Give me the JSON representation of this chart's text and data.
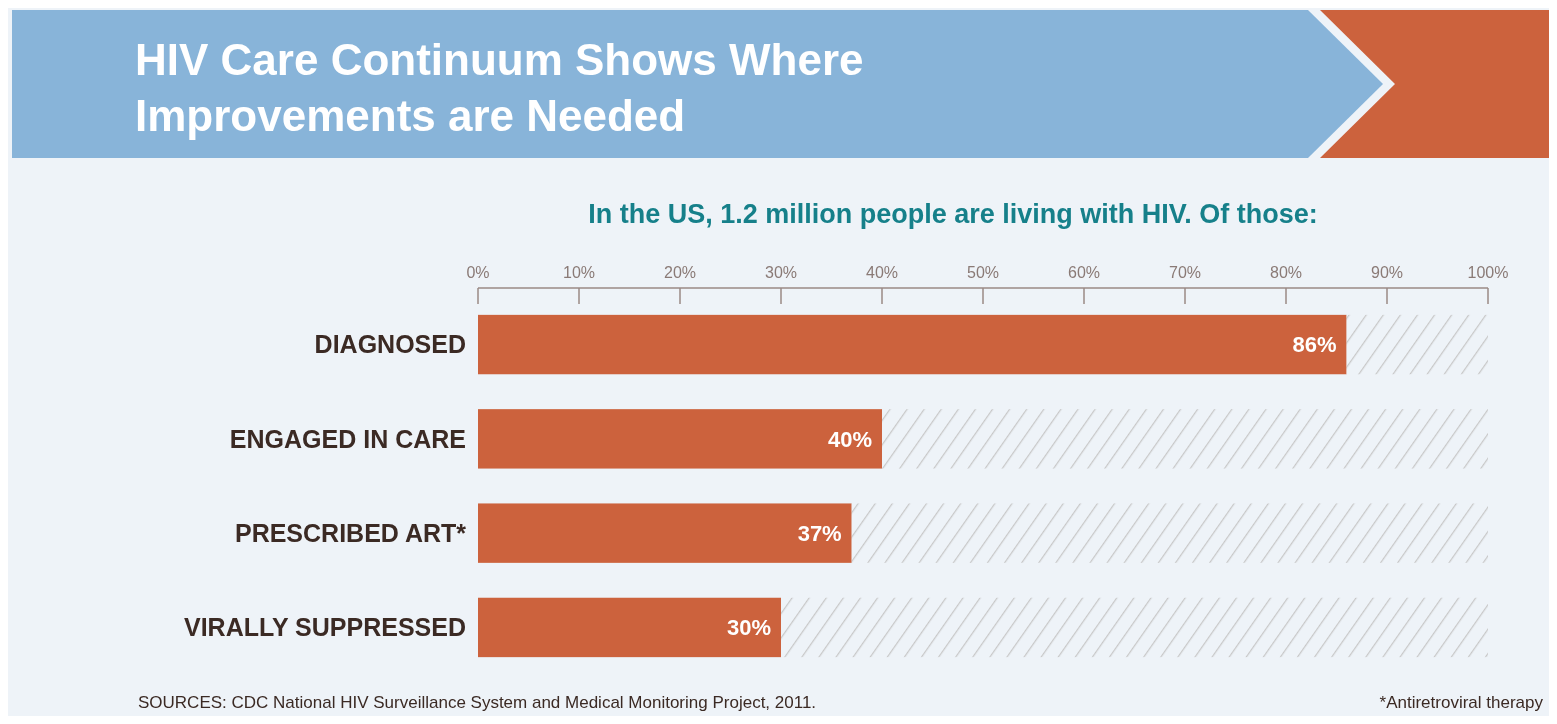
{
  "chart_data": {
    "type": "bar",
    "orientation": "horizontal",
    "stacked": true,
    "title": "HIV Care Continuum Shows Where Improvements are Needed",
    "subtitle": "In the US, 1.2 million people are living with HIV.  Of those:",
    "categories": [
      "DIAGNOSED",
      "ENGAGED IN CARE",
      "PRESCRIBED ART*",
      "VIRALLY SUPPRESSED"
    ],
    "series": [
      {
        "color": "#cc623d",
        "values": [
          86,
          40,
          37,
          30
        ],
        "value_labels": [
          "86%",
          "40%",
          "37%",
          "30%"
        ]
      },
      {
        "color": "#c8c8c8",
        "values": [
          14,
          60,
          63,
          70
        ]
      }
    ],
    "xlim": [
      0,
      100
    ],
    "xticks": [
      {
        "value": 0,
        "label": "0%"
      },
      {
        "value": 10,
        "label": "10%"
      },
      {
        "value": 20,
        "label": "20%"
      },
      {
        "value": 30,
        "label": "30%"
      },
      {
        "value": 40,
        "label": "40%"
      },
      {
        "value": 50,
        "label": "50%"
      },
      {
        "value": 60,
        "label": "60%"
      },
      {
        "value": 70,
        "label": "70%"
      },
      {
        "value": 80,
        "label": "80%"
      },
      {
        "value": 90,
        "label": "90%"
      },
      {
        "value": 100,
        "label": "100%"
      }
    ],
    "grid": false,
    "annotations": [
      "SOURCES: CDC National HIV Surveillance System and Medical Monitoring Project, 2011.",
      "*Antiretroviral therapy"
    ]
  }
}
